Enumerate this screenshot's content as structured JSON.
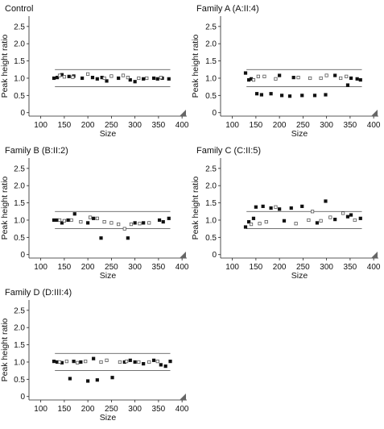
{
  "chart_data": [
    {
      "type": "scatter",
      "title": "Control",
      "xlabel": "Size",
      "ylabel": "Peak height ratio",
      "xlim": [
        75,
        410
      ],
      "ylim": [
        -0.1,
        2.8
      ],
      "xticks": [
        100,
        150,
        200,
        250,
        300,
        350,
        400
      ],
      "yticks": [
        0,
        0.5,
        1.0,
        1.5,
        2.0,
        2.5
      ],
      "threshold_lines": [
        1.25,
        0.75
      ],
      "series": [
        {
          "marker": "filled",
          "points": [
            [
              128,
              1.0
            ],
            [
              135,
              1.02
            ],
            [
              145,
              1.1
            ],
            [
              160,
              1.05
            ],
            [
              170,
              1.06
            ],
            [
              188,
              1.0
            ],
            [
              210,
              1.02
            ],
            [
              220,
              0.98
            ],
            [
              230,
              1.02
            ],
            [
              240,
              0.92
            ],
            [
              265,
              1.0
            ],
            [
              290,
              0.95
            ],
            [
              300,
              0.9
            ],
            [
              318,
              0.98
            ],
            [
              340,
              1.0
            ],
            [
              348,
              0.98
            ],
            [
              358,
              1.0
            ],
            [
              372,
              0.98
            ]
          ]
        },
        {
          "marker": "open",
          "points": [
            [
              140,
              1.08
            ],
            [
              150,
              1.04
            ],
            [
              168,
              1.03
            ],
            [
              200,
              1.12
            ],
            [
              235,
              1.0
            ],
            [
              250,
              1.06
            ],
            [
              275,
              1.08
            ],
            [
              285,
              1.02
            ],
            [
              308,
              1.0
            ],
            [
              325,
              1.0
            ],
            [
              355,
              1.02
            ]
          ]
        }
      ]
    },
    {
      "type": "scatter",
      "title": "Family A (A:II:4)",
      "xlabel": "Size",
      "ylabel": "Peak height ratio",
      "xlim": [
        75,
        410
      ],
      "ylim": [
        -0.1,
        2.8
      ],
      "xticks": [
        100,
        150,
        200,
        250,
        300,
        350,
        400
      ],
      "yticks": [
        0,
        0.5,
        1.0,
        1.5,
        2.0,
        2.5
      ],
      "threshold_lines": [
        1.25,
        0.75
      ],
      "series": [
        {
          "marker": "filled",
          "points": [
            [
              128,
              1.15
            ],
            [
              135,
              0.95
            ],
            [
              140,
              0.98
            ],
            [
              152,
              0.55
            ],
            [
              162,
              0.52
            ],
            [
              182,
              0.55
            ],
            [
              200,
              1.08
            ],
            [
              205,
              0.5
            ],
            [
              222,
              0.48
            ],
            [
              230,
              1.02
            ],
            [
              248,
              0.5
            ],
            [
              275,
              0.5
            ],
            [
              298,
              0.52
            ],
            [
              318,
              1.08
            ],
            [
              345,
              0.8
            ],
            [
              352,
              1.0
            ],
            [
              365,
              0.98
            ],
            [
              372,
              0.95
            ]
          ]
        },
        {
          "marker": "open",
          "points": [
            [
              145,
              0.95
            ],
            [
              155,
              1.05
            ],
            [
              168,
              1.05
            ],
            [
              192,
              0.98
            ],
            [
              240,
              1.02
            ],
            [
              265,
              1.0
            ],
            [
              288,
              1.0
            ],
            [
              300,
              1.08
            ],
            [
              330,
              1.0
            ],
            [
              342,
              1.05
            ]
          ]
        }
      ]
    },
    {
      "type": "scatter",
      "title": "Family B (B:II:2)",
      "xlabel": "Size",
      "ylabel": "Peak height ratio",
      "xlim": [
        75,
        410
      ],
      "ylim": [
        -0.1,
        2.8
      ],
      "xticks": [
        100,
        150,
        200,
        250,
        300,
        350,
        400
      ],
      "yticks": [
        0,
        0.5,
        1.0,
        1.5,
        2.0,
        2.5
      ],
      "threshold_lines": [
        1.25,
        0.75
      ],
      "series": [
        {
          "marker": "filled",
          "points": [
            [
              128,
              1.0
            ],
            [
              135,
              1.0
            ],
            [
              145,
              0.92
            ],
            [
              158,
              1.0
            ],
            [
              172,
              1.18
            ],
            [
              200,
              0.92
            ],
            [
              212,
              1.05
            ],
            [
              228,
              0.48
            ],
            [
              285,
              0.48
            ],
            [
              300,
              0.92
            ],
            [
              318,
              0.92
            ],
            [
              352,
              1.0
            ],
            [
              360,
              0.95
            ],
            [
              372,
              1.05
            ]
          ]
        },
        {
          "marker": "open",
          "points": [
            [
              140,
              1.0
            ],
            [
              150,
              0.98
            ],
            [
              165,
              1.0
            ],
            [
              185,
              0.95
            ],
            [
              205,
              1.08
            ],
            [
              220,
              1.05
            ],
            [
              235,
              0.95
            ],
            [
              250,
              0.92
            ],
            [
              265,
              0.88
            ],
            [
              278,
              0.75
            ],
            [
              292,
              0.88
            ],
            [
              310,
              0.9
            ],
            [
              330,
              0.92
            ]
          ]
        }
      ]
    },
    {
      "type": "scatter",
      "title": "Family C (C:II:5)",
      "xlabel": "Size",
      "ylabel": "Peak height ratio",
      "xlim": [
        75,
        410
      ],
      "ylim": [
        -0.1,
        2.8
      ],
      "xticks": [
        100,
        150,
        200,
        250,
        300,
        350,
        400
      ],
      "yticks": [
        0,
        0.5,
        1.0,
        1.5,
        2.0,
        2.5
      ],
      "threshold_lines": [
        1.25,
        0.75
      ],
      "series": [
        {
          "marker": "filled",
          "points": [
            [
              128,
              0.8
            ],
            [
              135,
              0.95
            ],
            [
              145,
              1.05
            ],
            [
              150,
              1.38
            ],
            [
              165,
              1.4
            ],
            [
              182,
              1.35
            ],
            [
              200,
              1.32
            ],
            [
              210,
              0.98
            ],
            [
              225,
              1.35
            ],
            [
              248,
              1.4
            ],
            [
              280,
              0.92
            ],
            [
              298,
              1.55
            ],
            [
              318,
              1.02
            ],
            [
              345,
              1.1
            ],
            [
              352,
              1.15
            ],
            [
              372,
              1.05
            ]
          ]
        },
        {
          "marker": "open",
          "points": [
            [
              140,
              0.88
            ],
            [
              158,
              0.9
            ],
            [
              172,
              0.95
            ],
            [
              192,
              1.38
            ],
            [
              235,
              0.9
            ],
            [
              262,
              1.0
            ],
            [
              270,
              1.25
            ],
            [
              288,
              0.98
            ],
            [
              308,
              1.08
            ],
            [
              335,
              1.2
            ],
            [
              360,
              1.0
            ]
          ]
        }
      ]
    },
    {
      "type": "scatter",
      "title": "Family D (D:III:4)",
      "xlabel": "Size",
      "ylabel": "Peak height ratio",
      "xlim": [
        75,
        410
      ],
      "ylim": [
        -0.1,
        2.8
      ],
      "xticks": [
        100,
        150,
        200,
        250,
        300,
        350,
        400
      ],
      "yticks": [
        0,
        0.5,
        1.0,
        1.5,
        2.0,
        2.5
      ],
      "threshold_lines": [
        1.25,
        0.75
      ],
      "series": [
        {
          "marker": "filled",
          "points": [
            [
              128,
              1.02
            ],
            [
              135,
              1.0
            ],
            [
              145,
              0.98
            ],
            [
              162,
              0.52
            ],
            [
              170,
              1.02
            ],
            [
              185,
              1.0
            ],
            [
              200,
              0.45
            ],
            [
              212,
              1.1
            ],
            [
              220,
              0.48
            ],
            [
              252,
              0.55
            ],
            [
              278,
              1.0
            ],
            [
              290,
              1.05
            ],
            [
              300,
              1.0
            ],
            [
              318,
              0.95
            ],
            [
              340,
              1.05
            ],
            [
              355,
              0.92
            ],
            [
              365,
              0.88
            ],
            [
              375,
              1.02
            ]
          ]
        },
        {
          "marker": "open",
          "points": [
            [
              140,
              1.0
            ],
            [
              155,
              1.02
            ],
            [
              178,
              0.98
            ],
            [
              195,
              1.02
            ],
            [
              228,
              1.0
            ],
            [
              240,
              1.05
            ],
            [
              268,
              1.0
            ],
            [
              282,
              1.02
            ],
            [
              308,
              1.0
            ],
            [
              330,
              1.0
            ],
            [
              348,
              1.02
            ]
          ]
        }
      ]
    }
  ]
}
